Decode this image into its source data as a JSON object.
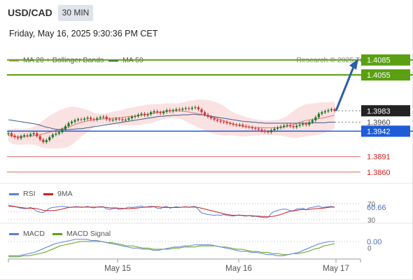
{
  "header": {
    "symbol": "USD/CAD",
    "interval": "30 MIN",
    "datetime": "Friday, May 16, 2025 9:30:36 PM CET",
    "copyright": "Research © 2025 Trading Central"
  },
  "legend": {
    "ma20": "MA 20 + Bollinger Bands",
    "ma50": "MA 50",
    "rsi": "RSI",
    "rsi_ma": "9MA",
    "macd": "MACD",
    "macd_signal": "MACD Signal"
  },
  "colors": {
    "up_candle": "#1b7a2a",
    "down_candle": "#d0393b",
    "ma20": "#e8756f",
    "ma50": "#3a5a8c",
    "bollinger_fill": "#f9d6d5",
    "target": "#5aa012",
    "pivot": "#1f5cd6",
    "support": "#e06666",
    "arrow": "#2a5ea8",
    "rsi": "#5b7fd6",
    "rsi_ma": "#cc2222",
    "macd": "#5b7fd6",
    "macd_signal": "#5aa012"
  },
  "chart_data": {
    "type": "candlestick",
    "x_labels": [
      "May 15",
      "May 16",
      "May 17"
    ],
    "y_range": [
      1.384,
      1.41
    ],
    "last_price": 1.3983,
    "levels": [
      {
        "value": 1.4085,
        "label": "1.4085",
        "kind": "target"
      },
      {
        "value": 1.4055,
        "label": "1.4055",
        "kind": "target"
      },
      {
        "value": 1.3983,
        "label": "1.3983",
        "kind": "last"
      },
      {
        "value": 1.396,
        "label": "1.3960",
        "kind": "plain"
      },
      {
        "value": 1.3942,
        "label": "1.3942",
        "kind": "pivot"
      },
      {
        "value": 1.3891,
        "label": "1.3891",
        "kind": "support"
      },
      {
        "value": 1.386,
        "label": "1.3860",
        "kind": "support"
      }
    ],
    "closes": [
      1.3938,
      1.3933,
      1.393,
      1.3928,
      1.3932,
      1.3934,
      1.3933,
      1.3936,
      1.3938,
      1.3932,
      1.3925,
      1.392,
      1.3924,
      1.393,
      1.3935,
      1.3937,
      1.394,
      1.3946,
      1.3952,
      1.3958,
      1.3961,
      1.3964,
      1.3966,
      1.3965,
      1.3967,
      1.3969,
      1.3966,
      1.3965,
      1.3968,
      1.397,
      1.3971,
      1.3966,
      1.3964,
      1.3965,
      1.3967,
      1.3966,
      1.3964,
      1.3965,
      1.3968,
      1.3971,
      1.3972,
      1.3975,
      1.3977,
      1.3974,
      1.3976,
      1.398,
      1.3982,
      1.398,
      1.3978,
      1.3981,
      1.3984,
      1.3982,
      1.3984,
      1.3986,
      1.3985,
      1.3987,
      1.3988,
      1.3987,
      1.3989,
      1.399,
      1.3986,
      1.398,
      1.3975,
      1.3971,
      1.3968,
      1.3965,
      1.3963,
      1.3961,
      1.396,
      1.3958,
      1.3957,
      1.3955,
      1.3954,
      1.3955,
      1.3952,
      1.3951,
      1.395,
      1.3948,
      1.3947,
      1.3945,
      1.3943,
      1.3941,
      1.394,
      1.3944,
      1.3947,
      1.3949,
      1.3951,
      1.3953,
      1.3954,
      1.3952,
      1.395,
      1.3953,
      1.3955,
      1.3957,
      1.3955,
      1.396,
      1.3964,
      1.397,
      1.3977,
      1.398,
      1.3982,
      1.3984,
      1.3986,
      1.3983
    ],
    "ma50": [
      1.3965,
      1.3964,
      1.3963,
      1.3962,
      1.3961,
      1.396,
      1.3959,
      1.3958,
      1.3957,
      1.3956,
      1.3954,
      1.3952,
      1.395,
      1.3949,
      1.3947,
      1.3946,
      1.3945,
      1.3945,
      1.3945,
      1.3945,
      1.3946,
      1.3946,
      1.3947,
      1.3947,
      1.3948,
      1.3949,
      1.395,
      1.3951,
      1.3952,
      1.3953,
      1.3954,
      1.3955,
      1.3956,
      1.3957,
      1.3958,
      1.3959,
      1.396,
      1.3961,
      1.3962,
      1.3963,
      1.3964,
      1.3965,
      1.3966,
      1.3967,
      1.3968,
      1.3969,
      1.397,
      1.3971,
      1.3972,
      1.3972,
      1.3973,
      1.3973,
      1.3974,
      1.3974,
      1.3974,
      1.3975,
      1.3975,
      1.3975,
      1.3976,
      1.3976,
      1.3975,
      1.3975,
      1.3974,
      1.3973,
      1.3972,
      1.3971,
      1.397,
      1.3969,
      1.3968,
      1.3967,
      1.3966,
      1.3965,
      1.3964,
      1.3963,
      1.3962,
      1.3961,
      1.3961,
      1.396,
      1.396,
      1.3959,
      1.3959,
      1.3958,
      1.3958,
      1.3958,
      1.3958,
      1.3958,
      1.3958,
      1.3958,
      1.3958,
      1.3958,
      1.3958,
      1.3958,
      1.3958,
      1.3958,
      1.3958,
      1.3958,
      1.3959,
      1.3959,
      1.3959,
      1.3959,
      1.3959,
      1.396,
      1.396,
      1.396
    ],
    "rsi": {
      "value_label": "60.66",
      "levels": [
        70,
        50,
        30
      ],
      "level_labels": [
        "70",
        "30"
      ],
      "rsi": [
        66,
        64,
        63,
        60,
        58,
        57,
        58,
        60,
        56,
        50,
        48,
        47,
        52,
        58,
        60,
        61,
        62,
        63,
        62,
        61,
        60,
        62,
        62,
        60,
        61,
        63,
        60,
        59,
        61,
        62,
        62,
        56,
        55,
        57,
        58,
        55,
        56,
        58,
        61,
        60,
        61,
        62,
        64,
        60,
        62,
        63,
        62,
        58,
        57,
        61,
        63,
        58,
        60,
        62,
        60,
        61,
        62,
        60,
        62,
        63,
        55,
        46,
        44,
        42,
        41,
        40,
        41,
        40,
        42,
        40,
        39,
        38,
        40,
        41,
        39,
        38,
        40,
        37,
        38,
        36,
        35,
        34,
        35,
        45,
        50,
        52,
        55,
        56,
        55,
        52,
        51,
        56,
        57,
        58,
        54,
        59,
        60,
        62,
        64,
        60,
        61,
        62,
        63,
        60
      ],
      "ma": [
        63,
        63,
        62,
        61,
        60,
        59,
        58,
        58,
        58,
        57,
        55,
        53,
        52,
        52,
        52,
        53,
        54,
        56,
        58,
        60,
        61,
        61,
        61,
        61,
        61,
        61,
        61,
        61,
        61,
        61,
        61,
        60,
        59,
        59,
        59,
        58,
        58,
        57,
        57,
        58,
        58,
        59,
        60,
        61,
        61,
        61,
        62,
        62,
        61,
        60,
        60,
        60,
        60,
        60,
        60,
        61,
        61,
        61,
        61,
        61,
        60,
        58,
        56,
        54,
        52,
        50,
        48,
        46,
        44,
        42,
        41,
        40,
        40,
        40,
        40,
        39,
        39,
        39,
        38,
        38,
        37,
        37,
        36,
        37,
        38,
        40,
        42,
        45,
        48,
        50,
        52,
        53,
        54,
        55,
        55,
        55,
        56,
        57,
        58,
        58,
        59,
        60,
        61,
        61
      ]
    },
    "macd": {
      "value_label": "0.00",
      "zero_label": "0",
      "macd": [
        -0.0005,
        -0.0005,
        -0.0005,
        -0.0004,
        -0.0003,
        -0.0002,
        0.0,
        0.0002,
        0.0004,
        0.0006,
        0.0007,
        0.0008,
        0.0009,
        0.001,
        0.001,
        0.001,
        0.0009,
        0.0009,
        0.0008,
        0.0007,
        0.0006,
        0.0005,
        0.0004,
        0.0003,
        0.0002,
        0.0002,
        0.0001,
        0.0001,
        0.0,
        0.0,
        0.0001,
        0.0002,
        0.0003,
        0.0003,
        0.0004,
        0.0004,
        0.0005,
        0.0005,
        0.0005,
        0.0005,
        0.0004,
        0.0003,
        0.0002,
        0.0001,
        0.0,
        -0.0001,
        -0.0001,
        -0.0002,
        -0.0002,
        -0.0003,
        -0.0004,
        -0.0004,
        -0.0005,
        -0.0005,
        -0.0004,
        -0.0003,
        -0.0002,
        0.0,
        0.0002,
        0.0004,
        0.0006,
        0.0007,
        0.0008,
        0.0008
      ],
      "signal": [
        -0.0006,
        -0.0006,
        -0.0006,
        -0.0005,
        -0.0005,
        -0.0004,
        -0.0003,
        -0.0002,
        0.0,
        0.0002,
        0.0004,
        0.0005,
        0.0006,
        0.0007,
        0.0008,
        0.0008,
        0.0008,
        0.0008,
        0.0008,
        0.0007,
        0.0007,
        0.0006,
        0.0005,
        0.0004,
        0.0004,
        0.0003,
        0.0002,
        0.0002,
        0.0001,
        0.0001,
        0.0001,
        0.0001,
        0.0002,
        0.0002,
        0.0003,
        0.0003,
        0.0003,
        0.0004,
        0.0004,
        0.0004,
        0.0004,
        0.0003,
        0.0003,
        0.0002,
        0.0001,
        0.0001,
        0.0,
        -0.0001,
        -0.0001,
        -0.0002,
        -0.0002,
        -0.0003,
        -0.0003,
        -0.0004,
        -0.0004,
        -0.0003,
        -0.0003,
        -0.0002,
        -0.0001,
        0.0001,
        0.0002,
        0.0004,
        0.0005,
        0.0006
      ]
    }
  }
}
